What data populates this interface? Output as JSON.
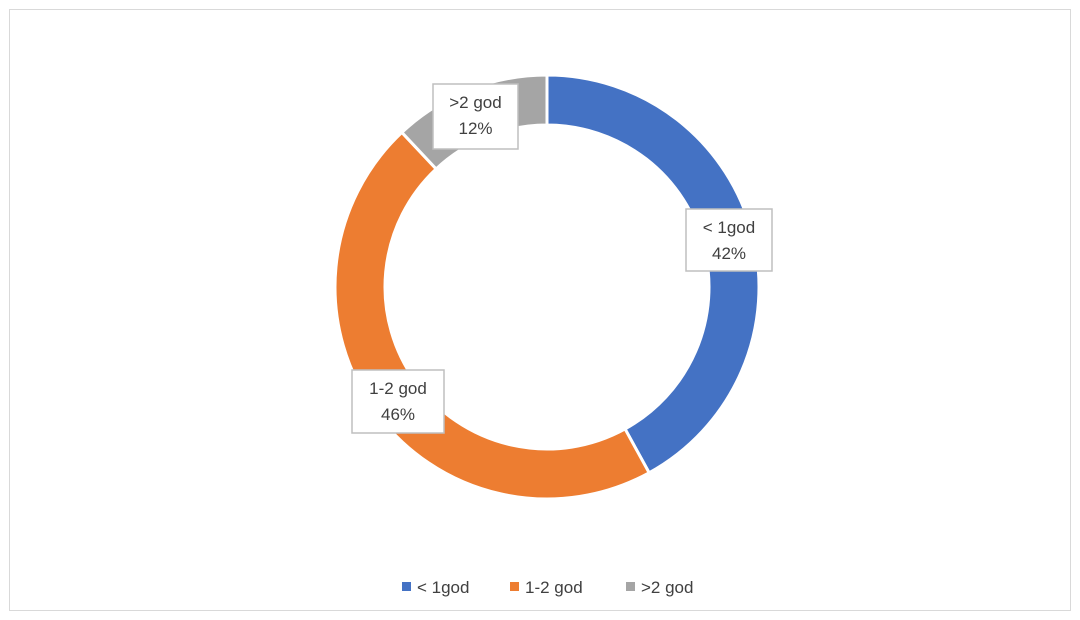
{
  "chart_data": {
    "type": "pie",
    "variant": "doughnut",
    "categories": [
      "< 1god",
      "1-2 god",
      ">2 god"
    ],
    "values": [
      42,
      46,
      12
    ],
    "unit": "%",
    "data_labels": [
      {
        "category": "< 1god",
        "value": "42%"
      },
      {
        "category": "1-2 god",
        "value": "46%"
      },
      {
        "category": ">2 god",
        "value": "12%"
      }
    ],
    "colors": [
      "#4472c4",
      "#ed7d31",
      "#a5a5a5"
    ],
    "legend": {
      "position": "bottom",
      "entries": [
        "< 1god",
        "1-2 god",
        ">2 god"
      ]
    },
    "title": ""
  }
}
